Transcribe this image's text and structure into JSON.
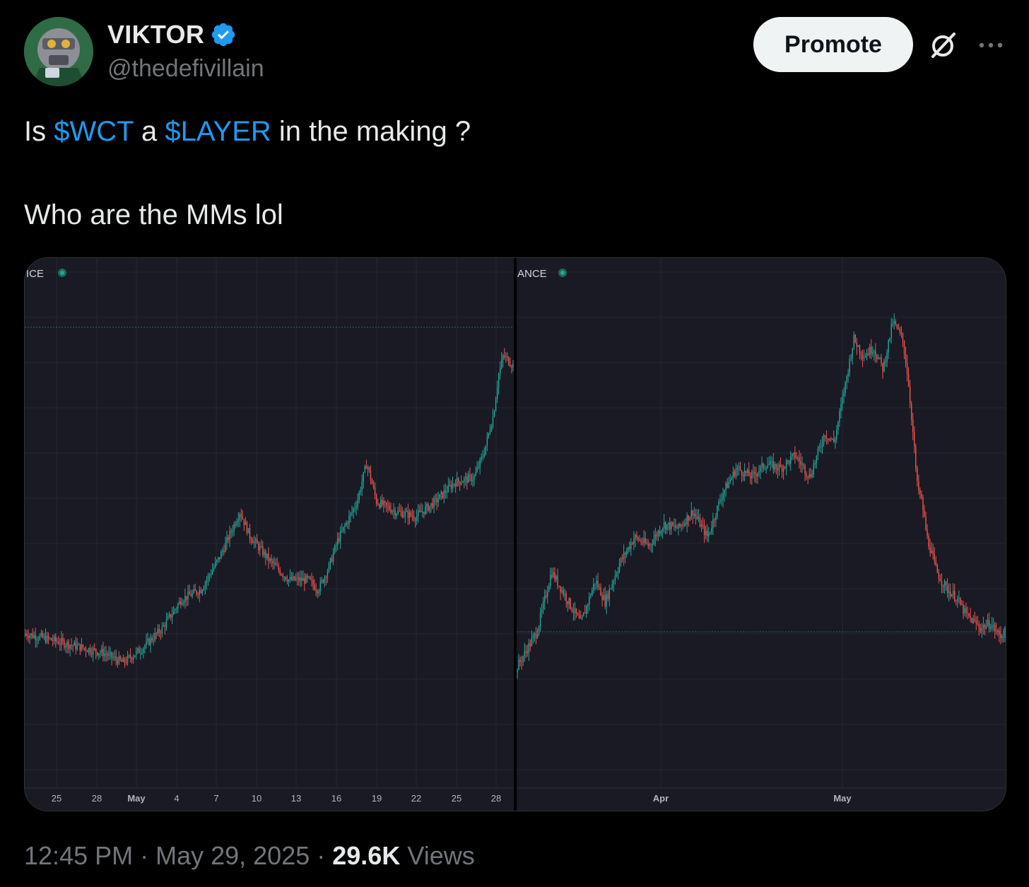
{
  "author": {
    "name": "VIKTOR",
    "handle": "@thedefivillain",
    "verified": true,
    "verified_color": "#1d9bf0"
  },
  "header": {
    "promote_label": "Promote",
    "grok_icon": "grok-icon",
    "more_icon": "more-icon"
  },
  "tweet": {
    "line1": {
      "prefix": "Is ",
      "cashtag1": "$WCT",
      "middle": " a ",
      "cashtag2": "$LAYER",
      "suffix": " in the making ?"
    },
    "line2": "Who are the MMs lol"
  },
  "media": {
    "left_chart": {
      "exchange_label": "ICE",
      "x_ticks": [
        "25",
        "28",
        "May",
        "4",
        "7",
        "10",
        "13",
        "16",
        "19",
        "22",
        "25",
        "28"
      ]
    },
    "right_chart": {
      "exchange_label": "ANCE",
      "x_ticks": [
        "Apr",
        "May"
      ]
    },
    "up_color": "#26a69a",
    "down_color": "#ef5350"
  },
  "chart_data": [
    {
      "type": "candlestick",
      "x_ticks": [
        "25",
        "28",
        "May",
        "4",
        "7",
        "10",
        "13",
        "16",
        "19",
        "22",
        "25",
        "28"
      ],
      "trend": [
        [
          0,
          0.23
        ],
        [
          4,
          0.22
        ],
        [
          8,
          0.21
        ],
        [
          12,
          0.2
        ],
        [
          16,
          0.19
        ],
        [
          20,
          0.17
        ],
        [
          24,
          0.2
        ],
        [
          28,
          0.24
        ],
        [
          32,
          0.3
        ],
        [
          36,
          0.32
        ],
        [
          40,
          0.39
        ],
        [
          44,
          0.48
        ],
        [
          46,
          0.43
        ],
        [
          50,
          0.38
        ],
        [
          54,
          0.34
        ],
        [
          58,
          0.34
        ],
        [
          60,
          0.32
        ],
        [
          62,
          0.36
        ],
        [
          64,
          0.42
        ],
        [
          66,
          0.46
        ],
        [
          68,
          0.5
        ],
        [
          70,
          0.58
        ],
        [
          72,
          0.5
        ],
        [
          76,
          0.48
        ],
        [
          80,
          0.47
        ],
        [
          84,
          0.5
        ],
        [
          88,
          0.54
        ],
        [
          92,
          0.55
        ],
        [
          94,
          0.6
        ],
        [
          96,
          0.68
        ],
        [
          97,
          0.76
        ],
        [
          98,
          0.8
        ],
        [
          100,
          0.78
        ]
      ]
    },
    {
      "type": "candlestick",
      "x_ticks": [
        "Apr",
        "May"
      ],
      "trend": [
        [
          0,
          0.2
        ],
        [
          4,
          0.28
        ],
        [
          7,
          0.42
        ],
        [
          10,
          0.36
        ],
        [
          13,
          0.3
        ],
        [
          16,
          0.4
        ],
        [
          18,
          0.35
        ],
        [
          21,
          0.44
        ],
        [
          24,
          0.5
        ],
        [
          27,
          0.48
        ],
        [
          30,
          0.53
        ],
        [
          33,
          0.52
        ],
        [
          36,
          0.56
        ],
        [
          39,
          0.5
        ],
        [
          42,
          0.6
        ],
        [
          45,
          0.66
        ],
        [
          48,
          0.64
        ],
        [
          51,
          0.67
        ],
        [
          54,
          0.66
        ],
        [
          57,
          0.69
        ],
        [
          60,
          0.64
        ],
        [
          63,
          0.74
        ],
        [
          65,
          0.72
        ],
        [
          67,
          0.84
        ],
        [
          69,
          0.96
        ],
        [
          71,
          0.92
        ],
        [
          73,
          0.94
        ],
        [
          75,
          0.89
        ],
        [
          77,
          1.0
        ],
        [
          79,
          0.96
        ],
        [
          80,
          0.88
        ],
        [
          81,
          0.76
        ],
        [
          82,
          0.62
        ],
        [
          83,
          0.58
        ],
        [
          84,
          0.5
        ],
        [
          86,
          0.42
        ],
        [
          88,
          0.38
        ],
        [
          90,
          0.36
        ],
        [
          92,
          0.32
        ],
        [
          95,
          0.29
        ],
        [
          97,
          0.3
        ],
        [
          99,
          0.27
        ],
        [
          100,
          0.28
        ]
      ]
    }
  ],
  "footer": {
    "time": "12:45 PM",
    "separator": " · ",
    "date": "May 29, 2025",
    "views_count": "29.6K",
    "views_label": " Views"
  }
}
